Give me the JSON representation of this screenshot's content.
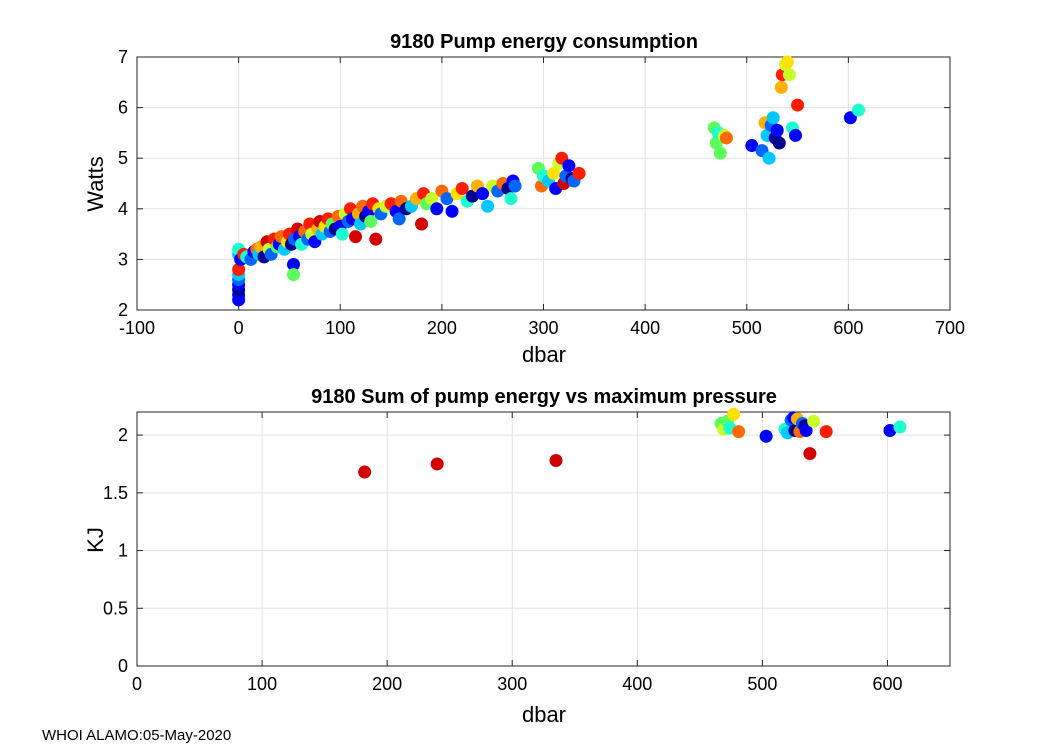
{
  "figure": {
    "footer": "WHOI ALAMO:05-May-2020"
  },
  "colors": {
    "palette": [
      "#000090",
      "#0000ff",
      "#0066ff",
      "#00c8ff",
      "#1effd0",
      "#5aff5a",
      "#c8ff28",
      "#ffe000",
      "#ffb000",
      "#ff6a00",
      "#ff1e00",
      "#d20000"
    ]
  },
  "chart_data": [
    {
      "type": "scatter",
      "title": "9180 Pump energy consumption",
      "xlabel": "dbar",
      "ylabel": "Watts",
      "xlim": [
        -100,
        700
      ],
      "ylim": [
        2,
        7
      ],
      "xticks": [
        -100,
        0,
        100,
        200,
        300,
        400,
        500,
        600,
        700
      ],
      "yticks": [
        2,
        3,
        4,
        5,
        6,
        7
      ],
      "grid": true,
      "points": [
        [
          0,
          2.2,
          1
        ],
        [
          0,
          2.3,
          1
        ],
        [
          0,
          2.4,
          0
        ],
        [
          0,
          2.5,
          1
        ],
        [
          0,
          2.6,
          2
        ],
        [
          0,
          2.7,
          3
        ],
        [
          0,
          2.8,
          10
        ],
        [
          0,
          3.1,
          3
        ],
        [
          0,
          3.2,
          4
        ],
        [
          2,
          3.0,
          1
        ],
        [
          5,
          3.1,
          10
        ],
        [
          8,
          3.05,
          4
        ],
        [
          12,
          3.0,
          2
        ],
        [
          15,
          3.15,
          1
        ],
        [
          18,
          3.2,
          9
        ],
        [
          20,
          3.1,
          3
        ],
        [
          22,
          3.25,
          8
        ],
        [
          25,
          3.05,
          0
        ],
        [
          28,
          3.35,
          11
        ],
        [
          30,
          3.2,
          6
        ],
        [
          32,
          3.1,
          2
        ],
        [
          35,
          3.4,
          10
        ],
        [
          38,
          3.25,
          5
        ],
        [
          40,
          3.3,
          1
        ],
        [
          42,
          3.45,
          9
        ],
        [
          45,
          3.2,
          3
        ],
        [
          48,
          3.35,
          7
        ],
        [
          50,
          3.5,
          10
        ],
        [
          52,
          3.3,
          0
        ],
        [
          54,
          2.9,
          1
        ],
        [
          54,
          2.7,
          5
        ],
        [
          55,
          3.4,
          2
        ],
        [
          58,
          3.6,
          11
        ],
        [
          60,
          3.45,
          1
        ],
        [
          62,
          3.3,
          4
        ],
        [
          65,
          3.55,
          9
        ],
        [
          68,
          3.4,
          2
        ],
        [
          70,
          3.7,
          10
        ],
        [
          72,
          3.5,
          6
        ],
        [
          75,
          3.35,
          1
        ],
        [
          78,
          3.6,
          8
        ],
        [
          80,
          3.75,
          11
        ],
        [
          82,
          3.5,
          3
        ],
        [
          85,
          3.65,
          7
        ],
        [
          88,
          3.8,
          10
        ],
        [
          90,
          3.55,
          2
        ],
        [
          92,
          3.7,
          5
        ],
        [
          95,
          3.6,
          0
        ],
        [
          98,
          3.85,
          9
        ],
        [
          100,
          3.65,
          1
        ],
        [
          102,
          3.5,
          4
        ],
        [
          105,
          3.9,
          6
        ],
        [
          108,
          3.75,
          2
        ],
        [
          110,
          4.0,
          10
        ],
        [
          112,
          3.8,
          1
        ],
        [
          115,
          3.45,
          11
        ],
        [
          118,
          3.9,
          8
        ],
        [
          120,
          3.7,
          3
        ],
        [
          122,
          4.05,
          9
        ],
        [
          125,
          3.85,
          0
        ],
        [
          128,
          3.95,
          1
        ],
        [
          130,
          3.75,
          5
        ],
        [
          132,
          4.1,
          10
        ],
        [
          135,
          3.4,
          11
        ],
        [
          138,
          4.0,
          7
        ],
        [
          140,
          3.9,
          2
        ],
        [
          145,
          4.05,
          6
        ],
        [
          150,
          4.1,
          10
        ],
        [
          155,
          3.95,
          1
        ],
        [
          158,
          3.8,
          2
        ],
        [
          160,
          4.15,
          9
        ],
        [
          165,
          4.0,
          0
        ],
        [
          170,
          4.05,
          3
        ],
        [
          175,
          4.2,
          8
        ],
        [
          180,
          3.7,
          11
        ],
        [
          182,
          4.3,
          10
        ],
        [
          185,
          4.1,
          5
        ],
        [
          190,
          4.2,
          6
        ],
        [
          195,
          4.0,
          1
        ],
        [
          200,
          4.35,
          9
        ],
        [
          205,
          4.2,
          2
        ],
        [
          210,
          3.95,
          1
        ],
        [
          215,
          4.3,
          7
        ],
        [
          220,
          4.4,
          10
        ],
        [
          225,
          4.15,
          4
        ],
        [
          230,
          4.25,
          0
        ],
        [
          235,
          4.45,
          8
        ],
        [
          240,
          4.3,
          1
        ],
        [
          245,
          4.05,
          3
        ],
        [
          250,
          4.45,
          6
        ],
        [
          255,
          4.35,
          2
        ],
        [
          260,
          4.5,
          9
        ],
        [
          265,
          4.4,
          0
        ],
        [
          268,
          4.2,
          4
        ],
        [
          270,
          4.55,
          1
        ],
        [
          272,
          4.45,
          2
        ],
        [
          295,
          4.8,
          5
        ],
        [
          298,
          4.45,
          9
        ],
        [
          300,
          4.65,
          4
        ],
        [
          305,
          4.55,
          3
        ],
        [
          310,
          4.7,
          7
        ],
        [
          312,
          4.4,
          1
        ],
        [
          315,
          4.9,
          6
        ],
        [
          318,
          5.0,
          10
        ],
        [
          320,
          4.5,
          11
        ],
        [
          322,
          4.65,
          2
        ],
        [
          325,
          4.85,
          1
        ],
        [
          328,
          4.6,
          0
        ],
        [
          330,
          4.55,
          2
        ],
        [
          335,
          4.7,
          10
        ],
        [
          468,
          5.6,
          5
        ],
        [
          470,
          5.3,
          5
        ],
        [
          472,
          5.5,
          4
        ],
        [
          474,
          5.1,
          5
        ],
        [
          478,
          5.45,
          6
        ],
        [
          480,
          5.4,
          9
        ],
        [
          505,
          5.25,
          1
        ],
        [
          515,
          5.15,
          2
        ],
        [
          518,
          5.7,
          8
        ],
        [
          520,
          5.45,
          3
        ],
        [
          522,
          5.0,
          3
        ],
        [
          524,
          5.65,
          2
        ],
        [
          526,
          5.8,
          3
        ],
        [
          528,
          5.4,
          0
        ],
        [
          530,
          5.55,
          1
        ],
        [
          532,
          5.3,
          0
        ],
        [
          534,
          6.4,
          8
        ],
        [
          535,
          6.65,
          10
        ],
        [
          538,
          6.85,
          6
        ],
        [
          540,
          6.9,
          7
        ],
        [
          542,
          6.65,
          6
        ],
        [
          545,
          5.6,
          4
        ],
        [
          548,
          5.45,
          1
        ],
        [
          550,
          6.05,
          10
        ],
        [
          602,
          5.8,
          1
        ],
        [
          610,
          5.95,
          4
        ]
      ]
    },
    {
      "type": "scatter",
      "title": "9180 Sum of pump energy vs maximum pressure",
      "xlabel": "dbar",
      "ylabel": "KJ",
      "xlim": [
        0,
        650
      ],
      "ylim": [
        0,
        2.2
      ],
      "xticks": [
        0,
        100,
        200,
        300,
        400,
        500,
        600
      ],
      "yticks": [
        0,
        0.5,
        1,
        1.5,
        2
      ],
      "grid": true,
      "points": [
        [
          182,
          1.68,
          11
        ],
        [
          240,
          1.75,
          11
        ],
        [
          335,
          1.78,
          11
        ],
        [
          467,
          2.1,
          5
        ],
        [
          469,
          2.05,
          6
        ],
        [
          472,
          2.12,
          5
        ],
        [
          474,
          2.06,
          4
        ],
        [
          477,
          2.18,
          7
        ],
        [
          481,
          2.03,
          9
        ],
        [
          503,
          1.99,
          1
        ],
        [
          518,
          2.05,
          4
        ],
        [
          520,
          2.02,
          3
        ],
        [
          523,
          2.13,
          2
        ],
        [
          525,
          2.15,
          1
        ],
        [
          526,
          2.04,
          0
        ],
        [
          528,
          2.14,
          8
        ],
        [
          530,
          2.03,
          9
        ],
        [
          532,
          2.1,
          2
        ],
        [
          534,
          2.08,
          0
        ],
        [
          535,
          2.04,
          1
        ],
        [
          538,
          1.84,
          11
        ],
        [
          541,
          2.12,
          6
        ],
        [
          551,
          2.03,
          10
        ],
        [
          602,
          2.04,
          1
        ],
        [
          610,
          2.07,
          4
        ]
      ]
    }
  ]
}
